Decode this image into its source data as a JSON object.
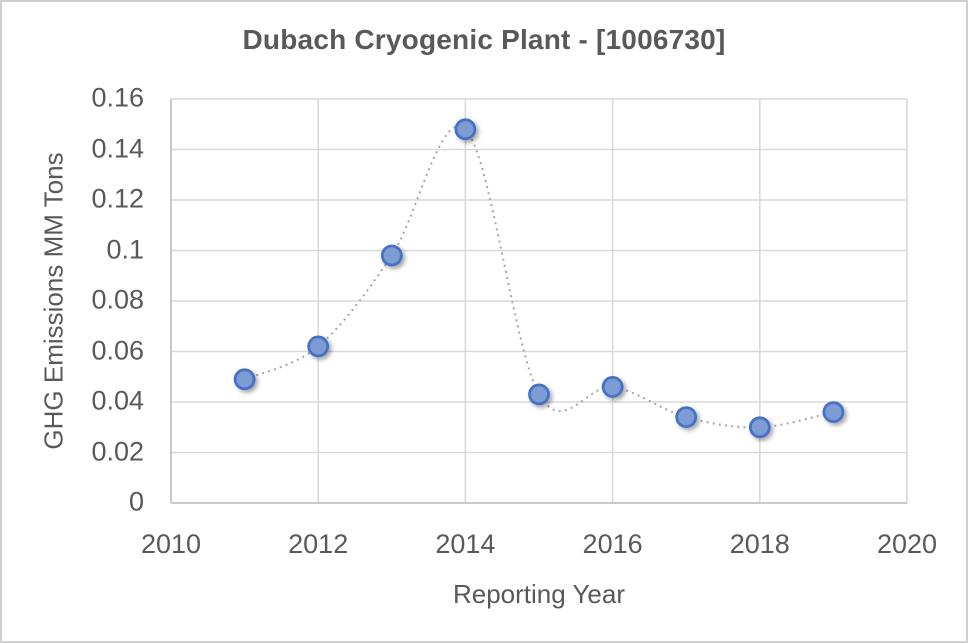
{
  "chart_data": {
    "type": "line",
    "title": "Dubach Cryogenic Plant - [1006730]",
    "xlabel": "Reporting Year",
    "ylabel": "GHG Emissions MM Tons",
    "x": [
      2011,
      2012,
      2013,
      2014,
      2015,
      2016,
      2017,
      2018,
      2019
    ],
    "values": [
      0.049,
      0.062,
      0.098,
      0.148,
      0.043,
      0.046,
      0.034,
      0.03,
      0.036
    ],
    "xlim": [
      2010,
      2020
    ],
    "ylim": [
      0,
      0.16
    ],
    "xticks": [
      2010,
      2012,
      2014,
      2016,
      2018,
      2020
    ],
    "xtick_labels": [
      "2010",
      "2012",
      "2014",
      "2016",
      "2018",
      "2020"
    ],
    "yticks": [
      0,
      0.02,
      0.04,
      0.06,
      0.08,
      0.1,
      0.12,
      0.14,
      0.16
    ],
    "ytick_labels": [
      "0",
      "0.02",
      "0.04",
      "0.06",
      "0.08",
      "0.1",
      "0.12",
      "0.14",
      "0.16"
    ],
    "grid": true,
    "legend": false,
    "line_style": "dotted",
    "marker": "circle",
    "colors": {
      "marker_fill": "#7E9CD4",
      "marker_stroke": "#4472C4",
      "line": "#A6A6A6",
      "grid": "#D9D9D9",
      "axis": "#C3C3C3",
      "text": "#595959",
      "background": "#FFFFFF",
      "frame_border": "#CFCFCF"
    }
  }
}
